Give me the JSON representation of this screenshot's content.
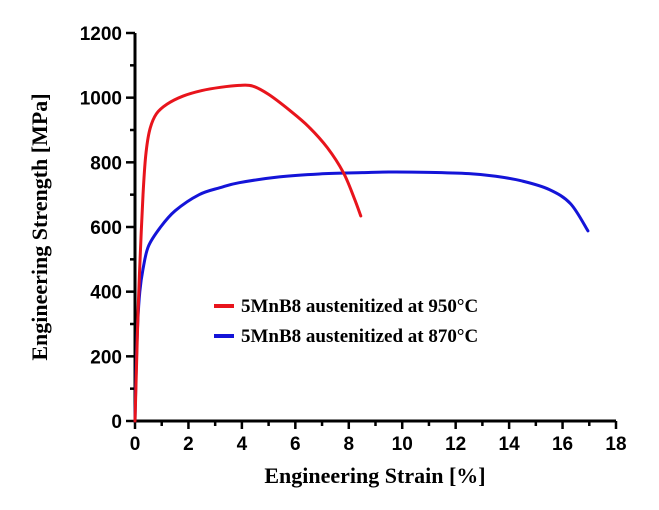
{
  "chart_data": {
    "type": "line",
    "title": "",
    "xlabel": "Engineering Strain [%]",
    "ylabel": "Engineering Strength [MPa]",
    "xlim": [
      0,
      18
    ],
    "ylim": [
      0,
      1200
    ],
    "xticks": [
      0,
      2,
      4,
      6,
      8,
      10,
      12,
      14,
      16,
      18
    ],
    "yticks": [
      0,
      200,
      400,
      600,
      800,
      1000,
      1200
    ],
    "x_minor_step": 1,
    "y_minor_step": 100,
    "grid": false,
    "legend_position": "center",
    "series": [
      {
        "name": "5MnB8 austenitized at 950°C",
        "color": "#e8141c",
        "points": [
          [
            0,
            0
          ],
          [
            0.05,
            150
          ],
          [
            0.12,
            350
          ],
          [
            0.2,
            520
          ],
          [
            0.3,
            700
          ],
          [
            0.4,
            820
          ],
          [
            0.55,
            900
          ],
          [
            0.8,
            950
          ],
          [
            1.2,
            980
          ],
          [
            1.8,
            1005
          ],
          [
            2.5,
            1022
          ],
          [
            3.2,
            1032
          ],
          [
            3.9,
            1038
          ],
          [
            4.4,
            1036
          ],
          [
            5.0,
            1010
          ],
          [
            5.8,
            960
          ],
          [
            6.5,
            910
          ],
          [
            7.2,
            845
          ],
          [
            7.8,
            768
          ],
          [
            8.2,
            690
          ],
          [
            8.45,
            634
          ]
        ]
      },
      {
        "name": "5MnB8 austenitized at 870°C",
        "color": "#1414d8",
        "points": [
          [
            0,
            0
          ],
          [
            0.04,
            150
          ],
          [
            0.1,
            300
          ],
          [
            0.18,
            400
          ],
          [
            0.3,
            470
          ],
          [
            0.5,
            540
          ],
          [
            0.94,
            598
          ],
          [
            1.5,
            650
          ],
          [
            2.4,
            700
          ],
          [
            3.2,
            722
          ],
          [
            3.9,
            737
          ],
          [
            5.4,
            755
          ],
          [
            6.9,
            764
          ],
          [
            8.5,
            768
          ],
          [
            9.5,
            770
          ],
          [
            11,
            769
          ],
          [
            12.5,
            765
          ],
          [
            13.5,
            757
          ],
          [
            14.5,
            742
          ],
          [
            15.5,
            716
          ],
          [
            16.3,
            672
          ],
          [
            16.95,
            588
          ]
        ]
      }
    ]
  }
}
